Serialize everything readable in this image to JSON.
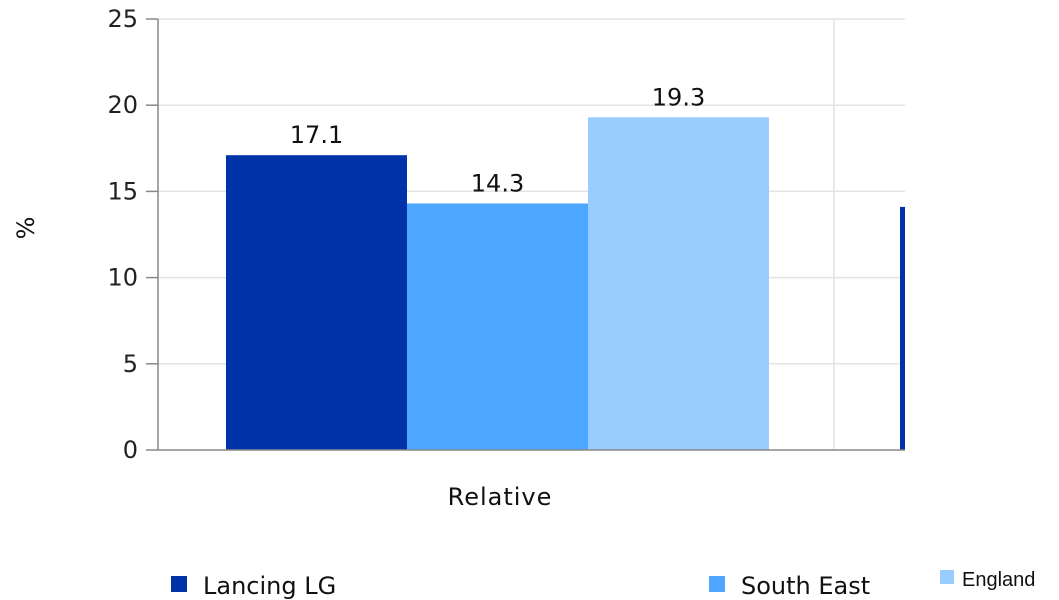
{
  "chart_data": {
    "type": "bar",
    "categories": [
      "Relative"
    ],
    "series": [
      {
        "name": "Lancing LG",
        "values": [
          17.1
        ],
        "color": "#0033AA"
      },
      {
        "name": "South East",
        "values": [
          14.3
        ],
        "color": "#4DA6FF"
      },
      {
        "name": "England",
        "values": [
          19.3
        ],
        "color": "#99CCFF"
      }
    ],
    "partial_bar": {
      "value": 14.1,
      "color": "#0033AA"
    },
    "ylabel": "%",
    "xlabel": "",
    "ylim": [
      0,
      25
    ],
    "yticks": [
      0,
      5,
      10,
      15,
      20,
      25
    ],
    "grid": true,
    "legend_position": "bottom"
  }
}
